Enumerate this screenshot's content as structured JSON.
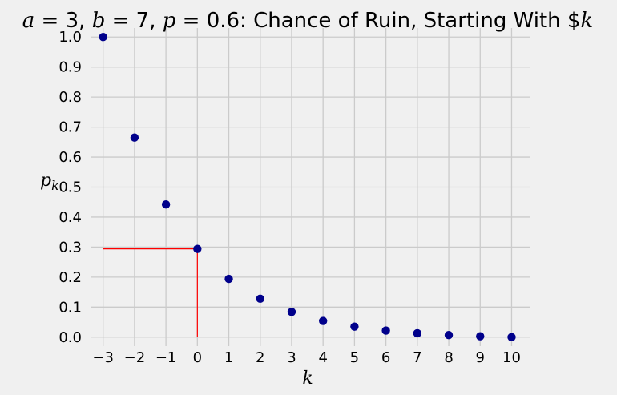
{
  "chart_data": {
    "type": "scatter",
    "title": "a = 3, b = 7, p = 0.6: Chance of Ruin, Starting With $k",
    "xlabel": "k",
    "ylabel": "p_k",
    "xlim": [
      -3.4,
      10.6
    ],
    "ylim": [
      -0.03,
      1.03
    ],
    "xticks": [
      "−3",
      "−2",
      "−1",
      "0",
      "1",
      "2",
      "3",
      "4",
      "5",
      "6",
      "7",
      "8",
      "9",
      "10"
    ],
    "yticks": [
      "0.0",
      "0.1",
      "0.2",
      "0.3",
      "0.4",
      "0.5",
      "0.6",
      "0.7",
      "0.8",
      "0.9",
      "1.0"
    ],
    "grid": true,
    "series": [
      {
        "color": "#00008b",
        "x": [
          -3,
          -2,
          -1,
          0,
          1,
          2,
          3,
          4,
          5,
          6,
          7,
          8,
          9,
          10
        ],
        "y": [
          1.0,
          0.665,
          0.442,
          0.294,
          0.194,
          0.128,
          0.084,
          0.054,
          0.035,
          0.022,
          0.013,
          0.007,
          0.003,
          0.0
        ]
      }
    ],
    "annotation_lines": {
      "color": "#ff0000",
      "x": 0,
      "y": 0.294
    }
  }
}
